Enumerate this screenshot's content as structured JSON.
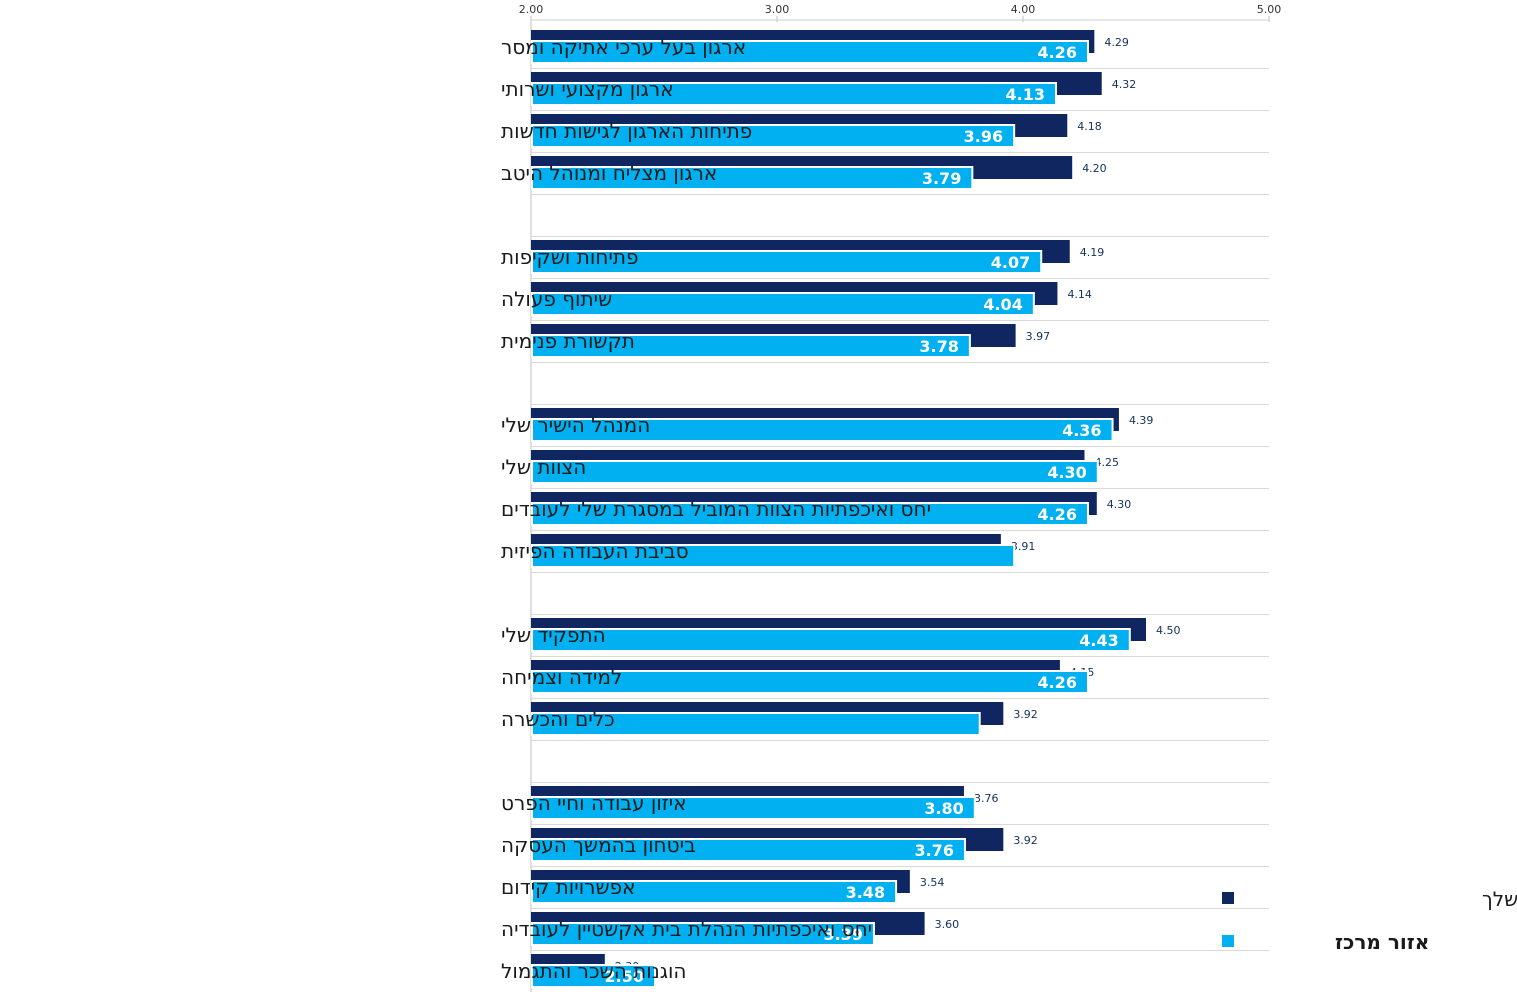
{
  "chart_data": {
    "type": "bar",
    "orientation": "horizontal",
    "xlim": [
      2.0,
      5.0
    ],
    "x_ticks": [
      "2.00",
      "3.00",
      "4.00",
      "5.00"
    ],
    "grid": true,
    "legend_position": "bottom-right",
    "categories": [
      "ארגון בעל ערכי אתיקה ומסר",
      "ארגון מקצועי ושרותי",
      "פתיחות הארגון לגישות חדשות",
      "ארגון מצליח ומנוהל היטב",
      "",
      "פתיחות ושקיפות",
      "שיתוף פעולה",
      "תקשורת פנימית",
      "",
      "המנהל הישיר שלי",
      "הצוות שלי",
      "יחס ואיכפתיות הצוות המוביל במסגרת שלי לעובדים",
      "סביבת העבודה הפיזית",
      "",
      "התפקיד שלי",
      "למידה וצמיחה",
      "כלים והכשרה",
      "",
      "איזון עבודה וחיי הפרט",
      "ביטחון בהמשך העסקה",
      "אפשרויות קידום",
      "יחס ואיכפתיות הנהלת בית אקשטיין לעובדיה",
      "הוגנות השכר והתגמול"
    ],
    "series": [
      {
        "name": "כלל הארגון ללא האזור שלך",
        "color": "#0f2660",
        "values": [
          4.29,
          4.32,
          4.18,
          4.2,
          null,
          4.19,
          4.14,
          3.97,
          null,
          4.39,
          4.25,
          4.3,
          3.91,
          null,
          4.5,
          4.15,
          3.92,
          null,
          3.76,
          3.92,
          3.54,
          3.6,
          2.3
        ],
        "labels": [
          "4.29",
          "4.32",
          "4.18",
          "4.20",
          "",
          "4.19",
          "4.14",
          "3.97",
          "",
          "4.39",
          "4.25",
          "4.30",
          "3.91",
          "",
          "4.50",
          "4.15",
          "3.92",
          "",
          "3.76",
          "3.92",
          "3.54",
          "3.60",
          "2.30"
        ]
      },
      {
        "name": "אזור מרכז",
        "color": "#00b0f0",
        "values": [
          4.26,
          4.13,
          3.96,
          3.79,
          null,
          4.07,
          4.04,
          3.78,
          null,
          4.36,
          4.3,
          4.26,
          3.96,
          null,
          4.43,
          4.26,
          3.82,
          null,
          3.8,
          3.76,
          3.48,
          3.39,
          2.5
        ],
        "labels": [
          "4.26",
          "4.13",
          "3.96",
          "3.79",
          "",
          "4.07",
          "4.04",
          "3.78",
          "",
          "4.36",
          "4.30",
          "4.26",
          "",
          "",
          "4.43",
          "4.26",
          "",
          "",
          "3.80",
          "3.76",
          "3.48",
          "3.39",
          "2.50"
        ]
      }
    ]
  }
}
